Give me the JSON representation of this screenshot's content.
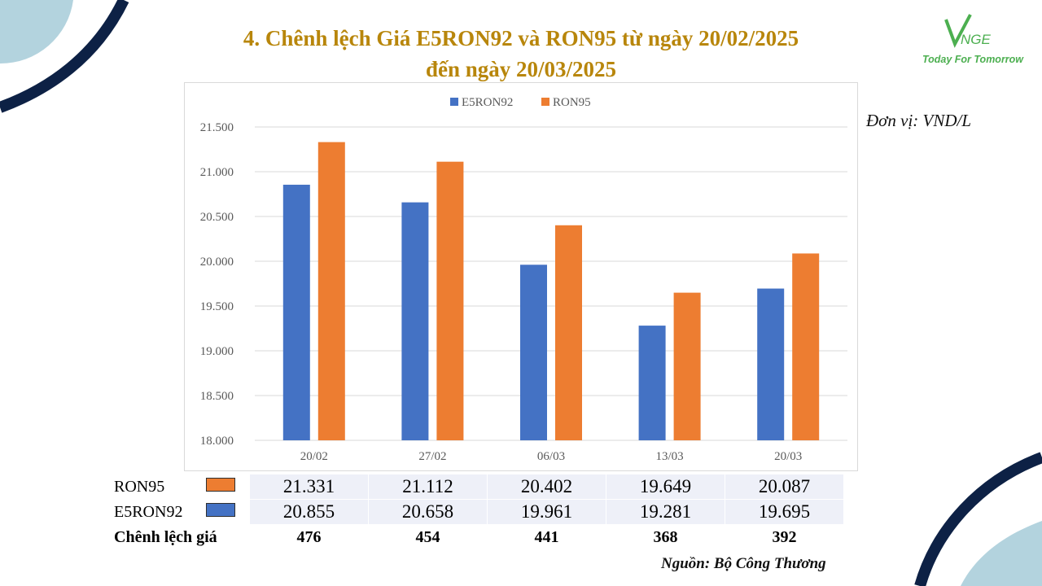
{
  "title_line1": "4. Chênh lệch Giá E5RON92 và RON95 từ ngày 20/02/2025",
  "title_line2": "đến ngày 20/03/2025",
  "logo": {
    "mark": "VNGE",
    "tagline": "Today For Tomorrow"
  },
  "unit_note": "Đơn vị: VND/L",
  "source_note": "Nguồn: Bộ Công Thương",
  "colors": {
    "e5ron92": "#4472C4",
    "ron95": "#ED7D31",
    "title": "#B8860B",
    "navy": "#0d2145",
    "lightblue": "#b3d3de"
  },
  "chart_data": {
    "type": "bar",
    "categories": [
      "20/02",
      "27/02",
      "06/03",
      "13/03",
      "20/03"
    ],
    "series": [
      {
        "name": "E5RON92",
        "values": [
          20855,
          20658,
          19961,
          19281,
          19695
        ]
      },
      {
        "name": "RON95",
        "values": [
          21331,
          21112,
          20402,
          19649,
          20087
        ]
      }
    ],
    "ylim": [
      18000,
      21500
    ],
    "yticks": [
      18000,
      18500,
      19000,
      19500,
      20000,
      20500,
      21000,
      21500
    ],
    "ytick_labels": [
      "18.000",
      "18.500",
      "19.000",
      "19.500",
      "20.000",
      "20.500",
      "21.000",
      "21.500"
    ],
    "legend": "top-center",
    "grid": true
  },
  "table": {
    "rows": [
      {
        "label": "RON95",
        "values": [
          "21.331",
          "21.112",
          "20.402",
          "19.649",
          "20.087"
        ]
      },
      {
        "label": "E5RON92",
        "values": [
          "20.855",
          "20.658",
          "19.961",
          "19.281",
          "19.695"
        ]
      },
      {
        "label": "Chênh lệch giá",
        "values": [
          "476",
          "454",
          "441",
          "368",
          "392"
        ]
      }
    ]
  }
}
